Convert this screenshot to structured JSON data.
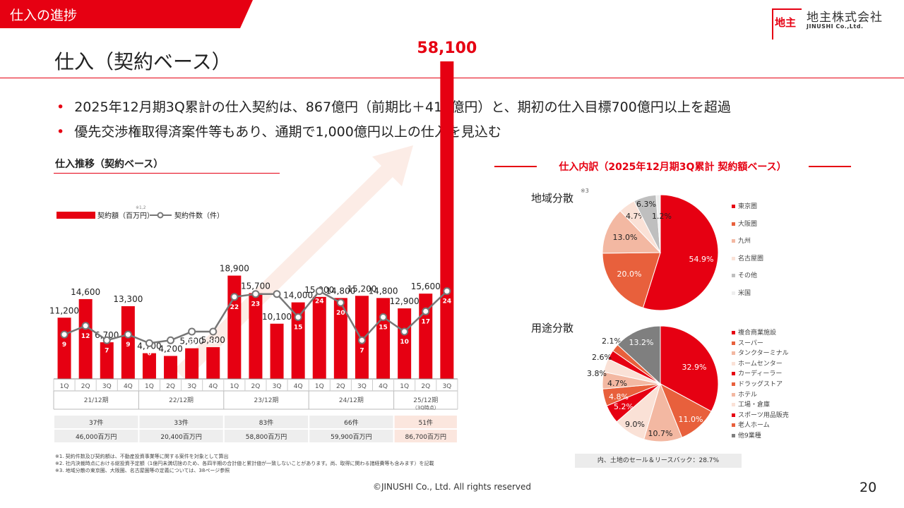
{
  "header": {
    "section": "仕入の進捗",
    "page_title": "仕入（契約ベース）",
    "logo_mark": "地主",
    "logo_name": "地主株式会社",
    "logo_en": "JINUSHI Co.,Ltd."
  },
  "bullets": [
    "2025年12月期3Q累計の仕入契約は、867億円（前期比＋415億円）と、期初の仕入目標700億円以上を超過",
    "優先交渉権取得済案件等もあり、通期で1,000億円以上の仕入を見込む"
  ],
  "bullet_mark": "•",
  "colors": {
    "accent": "#e60012",
    "line": "#777777",
    "total_highlight": "#fbe6de"
  },
  "chart_data": [
    {
      "type": "bar",
      "title": "仕入推移（契約ベース）",
      "legend": {
        "bar": "契約額（百万円）",
        "bar_note": "※1,2",
        "line": "契約件数（件）"
      },
      "categories": [
        "1Q",
        "2Q",
        "3Q",
        "4Q",
        "1Q",
        "2Q",
        "3Q",
        "4Q",
        "1Q",
        "2Q",
        "3Q",
        "4Q",
        "1Q",
        "2Q",
        "3Q",
        "4Q",
        "1Q",
        "2Q",
        "3Q"
      ],
      "series": [
        {
          "name": "契約額（百万円）",
          "kind": "bar",
          "values": [
            11200,
            14600,
            6700,
            13300,
            4700,
            4200,
            5600,
            5800,
            18900,
            15700,
            10100,
            14000,
            15000,
            14800,
            15200,
            14800,
            12900,
            15600,
            58100
          ],
          "labels": [
            "11,200",
            "14,600",
            "6,700",
            "13,300",
            "4,700",
            "4,200",
            "5,600",
            "5,800",
            "18,900",
            "15,700",
            "10,100",
            "14,000",
            "15,000",
            "14,800",
            "15,200",
            "14,800",
            "12,900",
            "15,600",
            "58,100"
          ]
        },
        {
          "name": "契約件数（件）",
          "kind": "line",
          "values": [
            9,
            12,
            7,
            9,
            6,
            7,
            10,
            10,
            22,
            23,
            23,
            15,
            24,
            20,
            7,
            15,
            10,
            17,
            24
          ],
          "labels": [
            "9",
            "12",
            "7",
            "9",
            "6",
            "7",
            "10",
            "10",
            "22",
            "23",
            "23",
            "15",
            "24",
            "20",
            "7",
            "15",
            "10",
            "17",
            "24"
          ]
        }
      ],
      "periods": [
        {
          "name": "21/12期",
          "note": "",
          "count": "37件",
          "amount": "46,000百万円"
        },
        {
          "name": "22/12期",
          "note": "",
          "count": "33件",
          "amount": "20,400百万円"
        },
        {
          "name": "23/12期",
          "note": "",
          "count": "83件",
          "amount": "58,800百万円"
        },
        {
          "name": "24/12期",
          "note": "",
          "count": "66件",
          "amount": "59,900百万円"
        },
        {
          "name": "25/12期",
          "note": "（3Q時点）",
          "count": "51件",
          "amount": "86,700百万円"
        }
      ],
      "bar_ylim": [
        0,
        58100
      ]
    },
    {
      "type": "pie",
      "title": "地域分散",
      "title_note": "※3",
      "slices": [
        {
          "label": "東京圏",
          "value": 54.9,
          "text": "54.9%",
          "color": "#e60012"
        },
        {
          "label": "大阪圏",
          "value": 20.0,
          "text": "20.0%",
          "color": "#e8603c"
        },
        {
          "label": "九州",
          "value": 13.0,
          "text": "13.0%",
          "color": "#f3b8a2"
        },
        {
          "label": "名古屋圏",
          "value": 4.7,
          "text": "4.7%",
          "color": "#fae1d6"
        },
        {
          "label": "その他",
          "value": 6.3,
          "text": "6.3%",
          "color": "#bfbfbf"
        },
        {
          "label": "米国",
          "value": 1.2,
          "text": "1.2%",
          "color": "#eeeeee"
        }
      ]
    },
    {
      "type": "pie",
      "title": "用途分散",
      "slices": [
        {
          "label": "複合商業施設",
          "value": 32.9,
          "text": "32.9%",
          "color": "#e60012"
        },
        {
          "label": "スーパー",
          "value": 11.0,
          "text": "11.0%",
          "color": "#e8603c"
        },
        {
          "label": "タンクターミナル",
          "value": 10.7,
          "text": "10.7%",
          "color": "#f3b8a2"
        },
        {
          "label": "ホームセンター",
          "value": 9.0,
          "text": "9.0%",
          "color": "#fae1d6"
        },
        {
          "label": "カーディーラー",
          "value": 5.2,
          "text": "5.2%",
          "color": "#e60012"
        },
        {
          "label": "ドラッグストア",
          "value": 4.8,
          "text": "4.8%",
          "color": "#e8603c"
        },
        {
          "label": "ホテル",
          "value": 4.7,
          "text": "4.7%",
          "color": "#f3b8a2"
        },
        {
          "label": "工場・倉庫",
          "value": 3.8,
          "text": "3.8%",
          "color": "#fae1d6"
        },
        {
          "label": "スポーツ用品販売",
          "value": 2.6,
          "text": "2.6%",
          "color": "#e60012"
        },
        {
          "label": "老人ホーム",
          "value": 2.1,
          "text": "2.1%",
          "color": "#e8603c"
        },
        {
          "label": "他9業種",
          "value": 13.2,
          "text": "13.2%",
          "color": "#7f7f7f"
        }
      ]
    }
  ],
  "breakdown": {
    "title": "仕入内訳（2025年12月期3Q累計 契約額ベース）",
    "land_note": "内、土地のセール＆リースバック：28.7%"
  },
  "footnotes": [
    "※1. 契約件数及び契約額は、不動産投資事業等に関する案件を対象として算出",
    "※2. 社内決裁時点における総投資予定額（1億円未満切捨のため、各四半期の合計値と累計値が一致しないことがあります。尚、取得に関わる諸経費等も含みます）を記載",
    "※3. 地域分散の東京圏、大阪圏、名古屋圏等の定義については、38ページ参照"
  ],
  "footer": "©JINUSHI Co., Ltd. All rights reserved",
  "page_number": "20"
}
